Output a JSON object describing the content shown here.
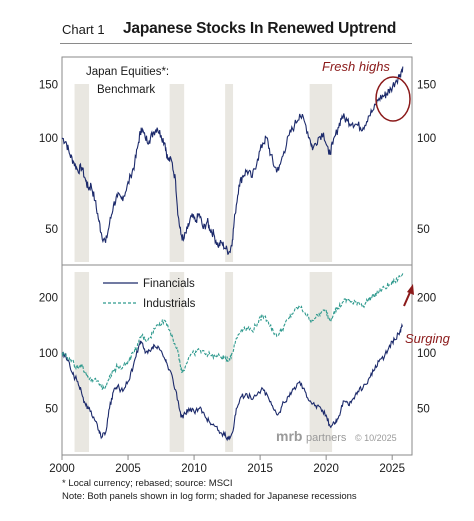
{
  "header": {
    "chart_label": "Chart 1",
    "title": "Japanese Stocks In Renewed Uptrend"
  },
  "footnotes": {
    "note1": "* Local currency; rebased; source: MSCI",
    "note2": "Note: Both panels shown in log form; shaded for Japanese recessions"
  },
  "brand": {
    "logo_text": "mrb",
    "partners_text": "partners",
    "copyright": "© 10/2025"
  },
  "colors": {
    "navy": "#1c2a6b",
    "teal": "#2f9a8e",
    "recession": "#e9e7e1",
    "annotation": "#8b1a1a"
  },
  "recessions": [
    [
      2000.95,
      2002.05
    ],
    [
      2008.15,
      2009.25
    ],
    [
      2012.35,
      2012.95
    ],
    [
      2018.75,
      2020.45
    ]
  ],
  "chart_data": [
    {
      "type": "line",
      "title": "",
      "log_scale": true,
      "ylim": [
        38,
        185
      ],
      "xlim": [
        2000,
        2026.5
      ],
      "yticks_right": [
        50,
        100,
        150
      ],
      "yticks_left": [
        50,
        100,
        150
      ],
      "series": [
        {
          "name": "Japan Equities*:",
          "legend_lines": [
            "Japan Equities*:",
            "Benchmark"
          ],
          "color": "#1c2a6b",
          "x": [
            2000,
            2000.3,
            2000.6,
            2000.9,
            2001.2,
            2001.5,
            2001.8,
            2002.0,
            2002.2,
            2002.5,
            2002.8,
            2003.0,
            2003.3,
            2003.6,
            2003.9,
            2004.2,
            2004.5,
            2004.8,
            2005.2,
            2005.5,
            2005.8,
            2006.0,
            2006.3,
            2006.6,
            2006.9,
            2007.2,
            2007.5,
            2007.8,
            2008.0,
            2008.3,
            2008.6,
            2008.8,
            2009.0,
            2009.2,
            2009.5,
            2009.8,
            2010.1,
            2010.4,
            2010.7,
            2011.0,
            2011.2,
            2011.5,
            2011.8,
            2012.1,
            2012.4,
            2012.7,
            2012.9,
            2013.1,
            2013.4,
            2013.7,
            2014.0,
            2014.4,
            2014.8,
            2015.2,
            2015.5,
            2015.8,
            2016.1,
            2016.4,
            2016.8,
            2017.2,
            2017.6,
            2018.0,
            2018.4,
            2018.8,
            2019.0,
            2019.4,
            2019.8,
            2020.2,
            2020.5,
            2020.9,
            2021.2,
            2021.6,
            2022.0,
            2022.4,
            2022.8,
            2023.2,
            2023.6,
            2024.0,
            2024.4,
            2024.6,
            2024.9,
            2025.3,
            2025.6,
            2025.8
          ],
          "values": [
            100,
            97,
            88,
            83,
            78,
            80,
            72,
            68,
            70,
            62,
            53,
            48,
            45,
            52,
            60,
            64,
            63,
            66,
            75,
            82,
            97,
            108,
            100,
            98,
            104,
            108,
            102,
            96,
            85,
            84,
            72,
            55,
            48,
            46,
            50,
            55,
            53,
            56,
            50,
            53,
            50,
            48,
            44,
            45,
            43,
            42,
            46,
            56,
            70,
            75,
            78,
            74,
            85,
            96,
            100,
            88,
            80,
            78,
            90,
            102,
            110,
            120,
            112,
            98,
            92,
            100,
            104,
            88,
            95,
            108,
            118,
            114,
            112,
            110,
            108,
            118,
            124,
            135,
            138,
            140,
            145,
            155,
            162,
            172
          ]
        }
      ]
    },
    {
      "type": "line",
      "title": "",
      "log_scale": true,
      "ylim": [
        28,
        300
      ],
      "xlim": [
        2000,
        2026.5
      ],
      "xticks": [
        2000,
        2005,
        2010,
        2015,
        2020,
        2025
      ],
      "yticks_right": [
        50,
        100,
        200
      ],
      "yticks_left": [
        50,
        100,
        200
      ],
      "series": [
        {
          "name": "Financials",
          "color": "#1c2a6b",
          "x": [
            2000,
            2000.3,
            2000.6,
            2000.9,
            2001.2,
            2001.5,
            2001.8,
            2002.0,
            2002.4,
            2002.8,
            2003.0,
            2003.3,
            2003.6,
            2003.9,
            2004.2,
            2004.6,
            2005.0,
            2005.4,
            2005.8,
            2006.0,
            2006.3,
            2006.7,
            2007.0,
            2007.4,
            2007.8,
            2008.0,
            2008.4,
            2008.8,
            2009.0,
            2009.2,
            2009.6,
            2010.0,
            2010.4,
            2010.8,
            2011.2,
            2011.6,
            2012.0,
            2012.3,
            2012.6,
            2012.9,
            2013.2,
            2013.6,
            2014.0,
            2014.4,
            2014.8,
            2015.2,
            2015.6,
            2016.0,
            2016.4,
            2016.8,
            2017.2,
            2017.6,
            2018.0,
            2018.4,
            2018.8,
            2019.2,
            2019.6,
            2020.0,
            2020.3,
            2020.6,
            2020.9,
            2021.3,
            2021.7,
            2022.0,
            2022.4,
            2022.8,
            2023.2,
            2023.6,
            2024.0,
            2024.4,
            2024.8,
            2025.2,
            2025.6,
            2025.8
          ],
          "values": [
            100,
            95,
            85,
            75,
            70,
            60,
            52,
            50,
            45,
            38,
            35,
            37,
            50,
            62,
            66,
            62,
            70,
            85,
            108,
            115,
            100,
            102,
            110,
            104,
            92,
            85,
            72,
            55,
            45,
            46,
            50,
            48,
            50,
            46,
            42,
            40,
            37,
            36,
            34,
            37,
            50,
            58,
            60,
            56,
            60,
            64,
            58,
            50,
            47,
            54,
            58,
            65,
            70,
            62,
            55,
            52,
            50,
            46,
            40,
            42,
            44,
            55,
            52,
            56,
            62,
            65,
            72,
            80,
            90,
            95,
            110,
            118,
            132,
            140
          ]
        },
        {
          "name": "Industrials",
          "color": "#2f9a8e",
          "x": [
            2000,
            2000.3,
            2000.6,
            2000.9,
            2001.2,
            2001.5,
            2001.8,
            2002.0,
            2002.4,
            2002.8,
            2003.0,
            2003.3,
            2003.6,
            2003.9,
            2004.2,
            2004.6,
            2005.0,
            2005.4,
            2005.8,
            2006.0,
            2006.3,
            2006.7,
            2007.0,
            2007.4,
            2007.8,
            2008.0,
            2008.4,
            2008.8,
            2009.0,
            2009.2,
            2009.6,
            2010.0,
            2010.4,
            2010.8,
            2011.2,
            2011.6,
            2012.0,
            2012.3,
            2012.6,
            2012.9,
            2013.2,
            2013.6,
            2014.0,
            2014.4,
            2014.8,
            2015.2,
            2015.6,
            2016.0,
            2016.4,
            2016.8,
            2017.2,
            2017.6,
            2018.0,
            2018.4,
            2018.8,
            2019.2,
            2019.6,
            2020.0,
            2020.3,
            2020.6,
            2020.9,
            2021.3,
            2021.7,
            2022.0,
            2022.4,
            2022.8,
            2023.2,
            2023.6,
            2024.0,
            2024.4,
            2024.8,
            2025.2,
            2025.6,
            2025.8
          ],
          "values": [
            100,
            98,
            92,
            88,
            82,
            85,
            78,
            74,
            72,
            68,
            65,
            66,
            75,
            80,
            85,
            84,
            90,
            100,
            112,
            125,
            118,
            122,
            135,
            145,
            150,
            142,
            120,
            100,
            82,
            80,
            95,
            100,
            104,
            100,
            98,
            96,
            95,
            94,
            92,
            100,
            120,
            135,
            138,
            132,
            145,
            160,
            150,
            130,
            125,
            140,
            155,
            170,
            178,
            165,
            150,
            155,
            165,
            170,
            150,
            168,
            175,
            190,
            195,
            185,
            190,
            180,
            195,
            205,
            215,
            225,
            235,
            245,
            260,
            270
          ]
        }
      ]
    }
  ],
  "annotations": {
    "fresh_highs": "Fresh highs",
    "surging": "Surging"
  }
}
